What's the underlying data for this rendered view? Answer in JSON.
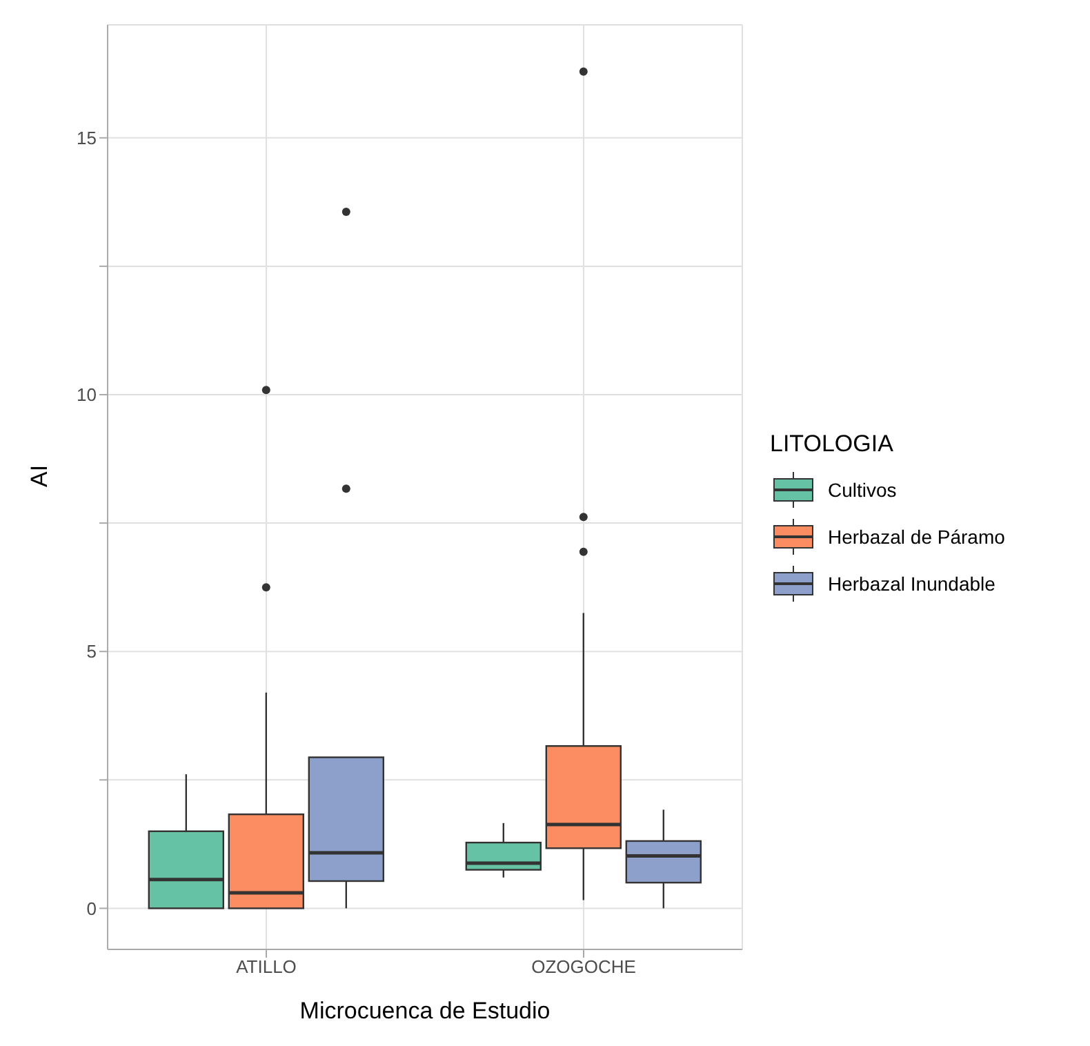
{
  "chart_data": {
    "type": "box",
    "xlabel": "Microcuenca de Estudio",
    "ylabel": "AI",
    "legend_title": "LITOLOGIA",
    "legend": "right",
    "grid": true,
    "categories": [
      "ATILLO",
      "OZOGOCHE"
    ],
    "ylim": [
      -0.8,
      17.2
    ],
    "yticks": [
      0,
      {
        "value": 2.5,
        "label": null
      },
      5,
      {
        "value": 7.5,
        "label": null
      },
      10,
      {
        "value": 12.5,
        "label": null
      },
      15
    ],
    "series": [
      {
        "name": "Cultivos",
        "color": "#66c2a5",
        "boxes": [
          {
            "low": 0,
            "q1": 0,
            "median": 0.56,
            "q3": 1.5,
            "high": 2.61
          },
          {
            "low": 0.6,
            "q1": 0.75,
            "median": 0.88,
            "q3": 1.28,
            "high": 1.66
          }
        ]
      },
      {
        "name": "Herbazal de Páramo",
        "color": "#fc8d62",
        "boxes": [
          {
            "low": 0,
            "q1": 0,
            "median": 0.3,
            "q3": 1.83,
            "high": 4.2,
            "outliers": [
              6.25,
              10.09
            ]
          },
          {
            "low": 0.16,
            "q1": 1.17,
            "median": 1.63,
            "q3": 3.16,
            "high": 5.75,
            "outliers": [
              6.94,
              7.62,
              16.29
            ]
          }
        ]
      },
      {
        "name": "Herbazal Inundable",
        "color": "#8da0cb",
        "boxes": [
          {
            "low": 0,
            "q1": 0.53,
            "median": 1.08,
            "q3": 2.94,
            "high": 2.94,
            "outliers": [
              8.17,
              13.56
            ]
          },
          {
            "low": 0,
            "q1": 0.5,
            "median": 1.02,
            "q3": 1.31,
            "high": 1.92
          }
        ]
      }
    ]
  }
}
